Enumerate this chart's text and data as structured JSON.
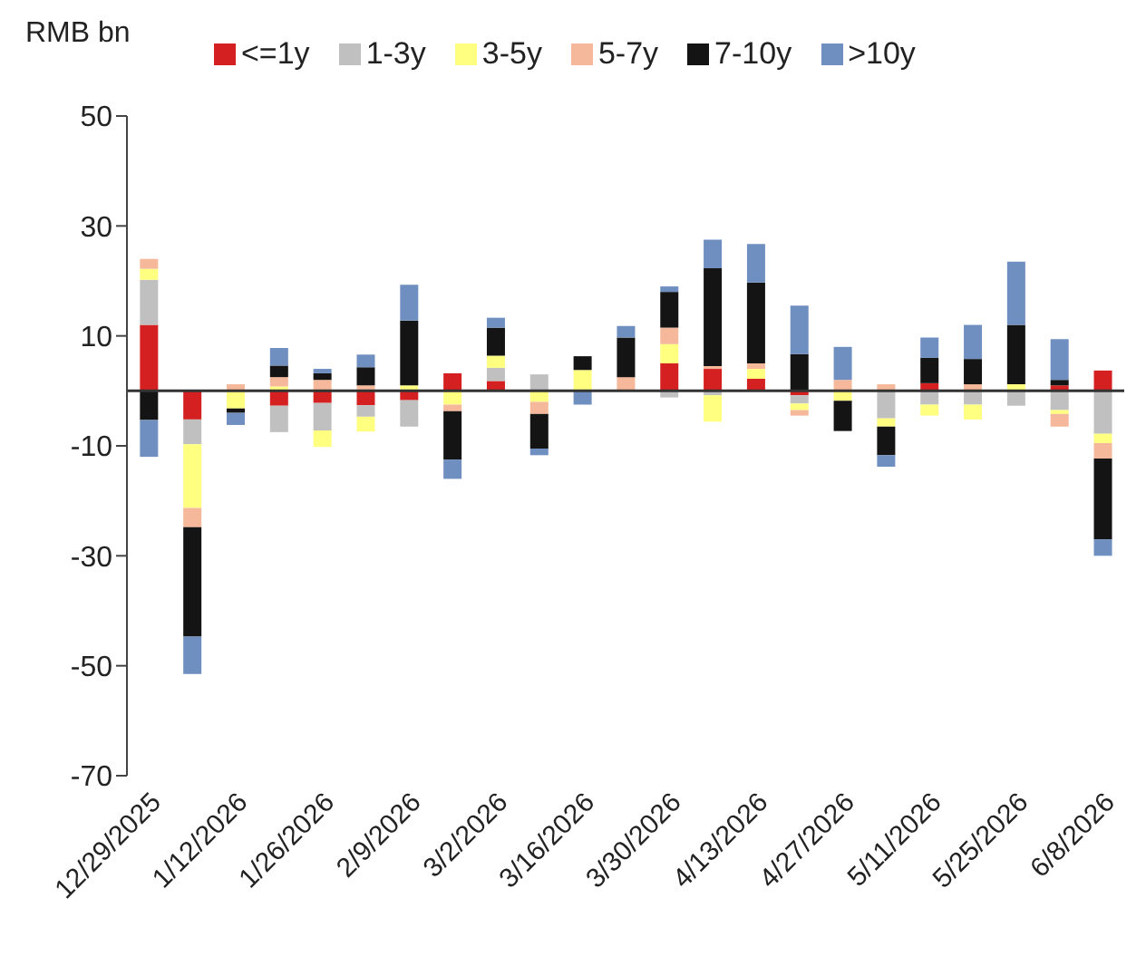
{
  "chart_data": {
    "type": "bar",
    "stacked": true,
    "ylabel": "RMB bn",
    "categories": [
      "12/29/2025",
      null,
      "1/12/2026",
      null,
      "1/26/2026",
      null,
      "2/9/2026",
      null,
      "3/2/2026",
      null,
      "3/16/2026",
      null,
      "3/30/2026",
      null,
      "4/13/2026",
      null,
      "4/27/2026",
      null,
      "5/11/2026",
      null,
      "5/25/2026",
      null,
      "6/8/2026"
    ],
    "series": [
      {
        "name": "<=1y",
        "color": "#d42020",
        "values": [
          12,
          -5.2,
          0,
          -2.7,
          -2.2,
          -2.6,
          -1.7,
          3.2,
          1.8,
          0,
          0,
          0,
          5,
          4,
          2.2,
          -0.8,
          0,
          0,
          1.4,
          0,
          0,
          1,
          3.7
        ]
      },
      {
        "name": "1-3y",
        "color": "#c0c0c0",
        "values": [
          8.2,
          -4.5,
          0,
          -4.8,
          -5,
          -2.1,
          -4.8,
          0,
          2.4,
          3,
          0,
          0,
          -1.2,
          -0.8,
          0,
          -1.5,
          0,
          -5,
          -2.5,
          -2.5,
          -2.7,
          -3.5,
          -7.8
        ]
      },
      {
        "name": "3-5y",
        "color": "#ffff80",
        "values": [
          2,
          -11.6,
          -3.2,
          0.8,
          -3,
          -2.7,
          1,
          -2.5,
          2.2,
          -2,
          3.8,
          0,
          3.5,
          -4.8,
          1.8,
          -1.2,
          -1.8,
          -1.5,
          -2,
          -2.7,
          1.2,
          -0.7,
          -1.7
        ]
      },
      {
        "name": "5-7y",
        "color": "#f5b89a",
        "values": [
          1.8,
          -3.5,
          1.2,
          1.7,
          2,
          1,
          0,
          -1.2,
          0,
          -2.2,
          0,
          2.5,
          3,
          0.5,
          1,
          -1,
          2,
          1.2,
          0,
          1.2,
          0,
          -2.3,
          -2.8
        ]
      },
      {
        "name": "7-10y",
        "color": "#141414",
        "values": [
          -5.3,
          -19.9,
          -0.8,
          2.1,
          1.2,
          3.3,
          11.8,
          -8.8,
          5.1,
          -6.3,
          2.5,
          7.2,
          6.5,
          17.8,
          14.7,
          6.7,
          -5.5,
          -5.2,
          4.6,
          4.6,
          10.8,
          1,
          -14.7
        ]
      },
      {
        "name": ">10y",
        "color": "#6f8fc0",
        "values": [
          -6.7,
          -6.8,
          -2.2,
          3.2,
          0.8,
          2.3,
          6.5,
          -3.5,
          1.8,
          -1.2,
          -2.5,
          2.1,
          1,
          5.2,
          7,
          8.8,
          6,
          -2.1,
          3.7,
          6.2,
          11.5,
          7.4,
          -3
        ]
      }
    ],
    "ylim": [
      -70,
      50
    ],
    "yticks": [
      50,
      30,
      10,
      -10,
      -30,
      -50,
      -70
    ],
    "legend": "top",
    "marker": "square"
  }
}
